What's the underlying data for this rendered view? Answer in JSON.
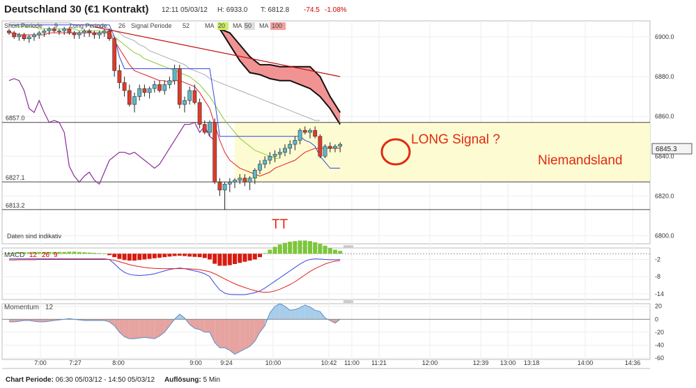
{
  "header": {
    "title": "Deutschland 30 (€1 Kontrakt)",
    "time": "12:11 05/03/12",
    "high": "H: 6933.0",
    "low": "T: 6812.8",
    "change": "-74.5",
    "change_pct": "-1.08%"
  },
  "indicator_legend": {
    "short_label": "Short Periode",
    "short_value": "9",
    "long_label": "Long Periode",
    "long_value": "26",
    "signal_label": "Signal Periode",
    "signal_value": "52",
    "ma1_label": "MA",
    "ma1_value": "20",
    "ma2_label": "MA",
    "ma2_value": "50",
    "ma3_label": "MA",
    "ma3_value": "100"
  },
  "colors": {
    "up": "#5bb8c8",
    "down": "#e03a2a",
    "ma20": "#e02020",
    "ma50": "#88cc33",
    "ma100": "#aaaaaa",
    "kijun": "#3344dd",
    "chikou": "#8a2a9a",
    "cloud": "#f08080",
    "zone": "#fdfbd2",
    "annot": "#e02a10"
  },
  "chart_data": [
    {
      "type": "candlestick",
      "title": "Deutschland 30 (€1 Kontrakt)",
      "ylim": [
        6796,
        6908
      ],
      "yticks": [
        "6900.0",
        "6880.0",
        "6860.0",
        "6840.0",
        "6820.0",
        "6800.0"
      ],
      "ytick_values": [
        6900,
        6880,
        6860,
        6840,
        6820,
        6800
      ],
      "xticks": [
        "7:00",
        "7:27",
        "8:00",
        "9:00",
        "9:24",
        "10:00",
        "10:42",
        "11:00",
        "11:21",
        "12:00",
        "12:39",
        "13:00",
        "13:18",
        "14:00",
        "14:36"
      ],
      "last_price": "6845.3",
      "last_price_value": 6845.3,
      "note": "Daten sind indikativ",
      "levels": [
        {
          "label": "6857.0",
          "value": 6857.0
        },
        {
          "label": "6827.1",
          "value": 6827.1
        },
        {
          "label": "6813.2",
          "value": 6813.2
        }
      ],
      "candles": [
        [
          6903,
          6904,
          6901,
          6902
        ],
        [
          6902,
          6903,
          6899,
          6900
        ],
        [
          6900,
          6902,
          6898,
          6901
        ],
        [
          6901,
          6902,
          6898,
          6899
        ],
        [
          6899,
          6901,
          6897,
          6900
        ],
        [
          6900,
          6902,
          6898,
          6901
        ],
        [
          6901,
          6903,
          6899,
          6902
        ],
        [
          6902,
          6904,
          6900,
          6903
        ],
        [
          6903,
          6905,
          6901,
          6904
        ],
        [
          6904,
          6905,
          6902,
          6903
        ],
        [
          6903,
          6904,
          6901,
          6903
        ],
        [
          6903,
          6905,
          6901,
          6904
        ],
        [
          6904,
          6905,
          6901,
          6902
        ],
        [
          6902,
          6903,
          6899,
          6901
        ],
        [
          6901,
          6903,
          6899,
          6902
        ],
        [
          6902,
          6904,
          6900,
          6903
        ],
        [
          6903,
          6904,
          6900,
          6902
        ],
        [
          6902,
          6903,
          6899,
          6901
        ],
        [
          6901,
          6903,
          6899,
          6902
        ],
        [
          6902,
          6904,
          6900,
          6903
        ],
        [
          6903,
          6904,
          6898,
          6899
        ],
        [
          6899,
          6900,
          6880,
          6883
        ],
        [
          6883,
          6886,
          6874,
          6877
        ],
        [
          6877,
          6880,
          6870,
          6873
        ],
        [
          6873,
          6876,
          6865,
          6866
        ],
        [
          6866,
          6872,
          6862,
          6870
        ],
        [
          6870,
          6876,
          6868,
          6874
        ],
        [
          6874,
          6876,
          6870,
          6872
        ],
        [
          6872,
          6875,
          6869,
          6874
        ],
        [
          6874,
          6878,
          6872,
          6876
        ],
        [
          6876,
          6878,
          6872,
          6873
        ],
        [
          6873,
          6878,
          6871,
          6876
        ],
        [
          6876,
          6880,
          6874,
          6878
        ],
        [
          6878,
          6886,
          6876,
          6884
        ],
        [
          6884,
          6886,
          6864,
          6866
        ],
        [
          6866,
          6870,
          6862,
          6868
        ],
        [
          6868,
          6875,
          6866,
          6873
        ],
        [
          6873,
          6876,
          6866,
          6867
        ],
        [
          6867,
          6869,
          6854,
          6856
        ],
        [
          6856,
          6858,
          6851,
          6852
        ],
        [
          6852,
          6858,
          6850,
          6857
        ],
        [
          6857,
          6859,
          6826,
          6827
        ],
        [
          6827,
          6829,
          6820,
          6823
        ],
        [
          6823,
          6827,
          6813,
          6826
        ],
        [
          6826,
          6829,
          6822,
          6827
        ],
        [
          6827,
          6829,
          6824,
          6828
        ],
        [
          6828,
          6831,
          6826,
          6829
        ],
        [
          6829,
          6831,
          6825,
          6827
        ],
        [
          6827,
          6830,
          6823,
          6829
        ],
        [
          6829,
          6834,
          6826,
          6833
        ],
        [
          6833,
          6838,
          6831,
          6836
        ],
        [
          6836,
          6840,
          6834,
          6838
        ],
        [
          6838,
          6842,
          6836,
          6840
        ],
        [
          6840,
          6843,
          6837,
          6841
        ],
        [
          6841,
          6844,
          6839,
          6842
        ],
        [
          6842,
          6846,
          6840,
          6844
        ],
        [
          6844,
          6848,
          6841,
          6846
        ],
        [
          6846,
          6850,
          6843,
          6848
        ],
        [
          6848,
          6854,
          6846,
          6853
        ],
        [
          6853,
          6855,
          6851,
          6852
        ],
        [
          6852,
          6854,
          6849,
          6853
        ],
        [
          6853,
          6855,
          6849,
          6850
        ],
        [
          6850,
          6851,
          6839,
          6840
        ],
        [
          6840,
          6846,
          6839,
          6845
        ],
        [
          6845,
          6847,
          6842,
          6844
        ],
        [
          6844,
          6846,
          6842,
          6845
        ],
        [
          6845,
          6847,
          6842,
          6846
        ]
      ],
      "ma20": [
        6902,
        6902,
        6901,
        6901,
        6901,
        6901,
        6901,
        6901,
        6902,
        6902,
        6902,
        6902,
        6902,
        6902,
        6902,
        6902,
        6902,
        6902,
        6902,
        6902,
        6902,
        6898,
        6894,
        6890,
        6886,
        6883,
        6882,
        6881,
        6880,
        6879,
        6878,
        6878,
        6877,
        6878,
        6878,
        6877,
        6876,
        6875,
        6872,
        6868,
        6864,
        6856,
        6848,
        6842,
        6838,
        6836,
        6834,
        6833,
        6832,
        6831,
        6830,
        6831,
        6832,
        6834,
        6835,
        6836,
        6837,
        6838,
        6840,
        6842,
        6843,
        6844,
        6844,
        6844,
        6844,
        6844,
        6844
      ],
      "ma50": [
        6906,
        6906,
        6905,
        6905,
        6905,
        6905,
        6904,
        6904,
        6904,
        6904,
        6904,
        6904,
        6904,
        6904,
        6903,
        6903,
        6903,
        6903,
        6903,
        6902,
        6902,
        6900,
        6898,
        6896,
        6894,
        6892,
        6891,
        6889,
        6888,
        6887,
        6886,
        6885,
        6884,
        6883,
        6882,
        6881,
        6880,
        6878,
        6876,
        6873,
        6870,
        6866,
        6862,
        6858,
        6855,
        6852,
        6849,
        6847,
        6845,
        6843,
        6842,
        6841,
        6840,
        6839,
        6839
      ],
      "ma100": [
        6907,
        6907,
        6907,
        6907,
        6907,
        6907,
        6907,
        6907,
        6907,
        6907,
        6907,
        6907,
        6907,
        6906,
        6906,
        6906,
        6906,
        6905,
        6905,
        6905,
        6904,
        6903,
        6902,
        6900,
        6899,
        6898,
        6896,
        6895,
        6893,
        6892,
        6891,
        6890,
        6889,
        6888,
        6887,
        6886,
        6884,
        6883,
        6882,
        6881,
        6879,
        6878,
        6877,
        6876,
        6875,
        6874,
        6873,
        6872,
        6871,
        6870,
        6869,
        6868,
        6867,
        6866,
        6865,
        6864,
        6863,
        6862,
        6861,
        6860,
        6859,
        6858,
        6858
      ],
      "kijun": [
        6906,
        6906,
        6906,
        6906,
        6906,
        6906,
        6906,
        6906,
        6906,
        6906,
        6906,
        6906,
        6906,
        6906,
        6906,
        6906,
        6906,
        6906,
        6906,
        6906,
        6906,
        6900,
        6890,
        6884,
        6884,
        6884,
        6884,
        6884,
        6884,
        6884,
        6884,
        6884,
        6884,
        6884,
        6884,
        6884,
        6884,
        6884,
        6884,
        6884,
        6884,
        6868,
        6850,
        6850,
        6850,
        6850,
        6850,
        6850,
        6850,
        6850,
        6850,
        6850,
        6850,
        6850,
        6850,
        6850,
        6850,
        6850,
        6850,
        6848,
        6847,
        6845,
        6840,
        6837,
        6834,
        6834,
        6834
      ],
      "chikou": [
        6878,
        6879,
        6878,
        6873,
        6864,
        6862,
        6868,
        6862,
        6857,
        6858,
        6857,
        6852,
        6835,
        6830,
        6827,
        6830,
        6832,
        6828,
        6826,
        6832,
        6838,
        6840,
        6842,
        6842,
        6841,
        6842,
        6840,
        6838,
        6836,
        6834,
        6836,
        6840,
        6844,
        6848,
        6852,
        6856,
        6856,
        6857,
        6852,
        6855,
        6850,
        6848
      ],
      "cloud_x": [
        42,
        44,
        46,
        48,
        50,
        52,
        54,
        56,
        58,
        60,
        62,
        64,
        66
      ],
      "cloud_upper": [
        6904,
        6902,
        6896,
        6890,
        6886,
        6886,
        6885,
        6885,
        6885,
        6885,
        6880,
        6870,
        6862
      ],
      "cloud_lower": [
        6904,
        6896,
        6888,
        6882,
        6881,
        6879,
        6878,
        6878,
        6876,
        6874,
        6870,
        6864,
        6856
      ],
      "trendline": {
        "x0": 17,
        "y0": 6905,
        "x1": 66,
        "y1": 6880
      },
      "annotations": [
        {
          "text": "LONG Signal ?"
        },
        {
          "text": "Niemandsland"
        },
        {
          "text": "TT"
        }
      ]
    },
    {
      "type": "bar+line",
      "title": "MACD",
      "params": [
        "12",
        "26",
        "9"
      ],
      "ylim": [
        -16,
        2
      ],
      "yticks": [
        "-2",
        "-8",
        "-14"
      ],
      "ytick_values": [
        -2,
        -8,
        -14
      ],
      "histogram": [
        0.3,
        0.4,
        0.5,
        0.5,
        0.5,
        0.6,
        0.6,
        0.6,
        0.6,
        0.6,
        0.6,
        0.6,
        0.7,
        0.7,
        0.6,
        0.5,
        0.4,
        0.3,
        0.2,
        0.1,
        -0.5,
        -1.2,
        -1.8,
        -2.2,
        -2.4,
        -2.4,
        -2.2,
        -2.0,
        -1.8,
        -1.6,
        -1.4,
        -1.2,
        -1.0,
        -0.8,
        -0.7,
        -0.8,
        -1.0,
        -1.1,
        -1.2,
        -1.5,
        -2.0,
        -3.5,
        -4.2,
        -4.2,
        -4.0,
        -3.6,
        -3.2,
        -2.8,
        -2.4,
        -2.0,
        -1.2,
        0.2,
        1.4,
        2.4,
        3.2,
        3.8,
        4.2,
        4.4,
        4.6,
        4.6,
        4.4,
        4.0,
        3.5,
        2.8,
        2.0,
        1.4,
        1.0
      ],
      "macd": [
        -1.8,
        -1.8,
        -1.8,
        -1.8,
        -1.8,
        -1.8,
        -1.8,
        -1.8,
        -1.8,
        -1.8,
        -1.8,
        -1.8,
        -1.8,
        -1.8,
        -1.8,
        -1.8,
        -1.8,
        -1.8,
        -1.8,
        -1.8,
        -2.0,
        -3.5,
        -5.2,
        -6.5,
        -7.2,
        -7.5,
        -7.6,
        -7.5,
        -7.3,
        -7.0,
        -6.5,
        -6.0,
        -5.5,
        -5.2,
        -5.0,
        -5.2,
        -5.6,
        -6.0,
        -6.4,
        -7.0,
        -8.0,
        -10.5,
        -12.6,
        -13.8,
        -14.2,
        -14.3,
        -14.3,
        -14.3,
        -14.0,
        -13.6,
        -13.0,
        -12.0,
        -10.8,
        -9.6,
        -8.4,
        -7.2,
        -6.0,
        -4.8,
        -3.6,
        -2.6,
        -2.0,
        -1.8,
        -1.9,
        -2.0,
        -2.1,
        -2.1,
        -2.0
      ],
      "signal": [
        -2.2,
        -2.2,
        -2.1,
        -2.1,
        -2.1,
        -2.1,
        -2.0,
        -2.0,
        -2.0,
        -2.0,
        -2.0,
        -2.0,
        -2.0,
        -2.0,
        -2.0,
        -2.0,
        -2.0,
        -2.0,
        -2.0,
        -2.0,
        -2.0,
        -2.3,
        -2.8,
        -3.3,
        -3.8,
        -4.2,
        -4.5,
        -4.8,
        -5.0,
        -5.1,
        -5.2,
        -5.2,
        -5.2,
        -5.2,
        -5.2,
        -5.2,
        -5.3,
        -5.4,
        -5.6,
        -5.9,
        -6.3,
        -7.0,
        -7.9,
        -8.8,
        -9.7,
        -10.5,
        -11.2,
        -11.8,
        -12.4,
        -12.9,
        -13.3,
        -13.5,
        -13.4,
        -13.0,
        -12.4,
        -11.6,
        -10.8,
        -9.8,
        -8.6,
        -7.4,
        -6.2,
        -5.2,
        -4.4,
        -3.6,
        -3.0,
        -2.6,
        -2.4
      ]
    },
    {
      "type": "area",
      "title": "Momentum",
      "params": [
        "12"
      ],
      "ylim": [
        -62,
        24
      ],
      "yticks": [
        "20",
        "0",
        "-20",
        "-40",
        "-60"
      ],
      "ytick_values": [
        20,
        0,
        -20,
        -40,
        -60
      ],
      "values": [
        -4,
        -4,
        -3,
        -2,
        -2,
        -3,
        -4,
        -4,
        -3,
        -2,
        -1,
        0,
        1,
        0,
        -1,
        -2,
        -2,
        -2,
        -2,
        -2,
        -4,
        -10,
        -20,
        -27,
        -30,
        -30,
        -29,
        -28,
        -29,
        -30,
        -26,
        -20,
        -10,
        0,
        8,
        2,
        -8,
        -14,
        -16,
        -20,
        -20,
        -36,
        -44,
        -44,
        -48,
        -54,
        -50,
        -46,
        -42,
        -34,
        -20,
        -10,
        10,
        20,
        24,
        20,
        14,
        15,
        18,
        22,
        19,
        14,
        12,
        2,
        -2,
        -6,
        0
      ]
    },
    {
      "type": "time-axis",
      "title": "Chart Periode",
      "period_label": "Chart Periode:",
      "period_value": "06:30 05/03/12 - 14:50 05/03/12",
      "resolution_label": "Auflösung:",
      "resolution_value": "5 Min"
    }
  ]
}
